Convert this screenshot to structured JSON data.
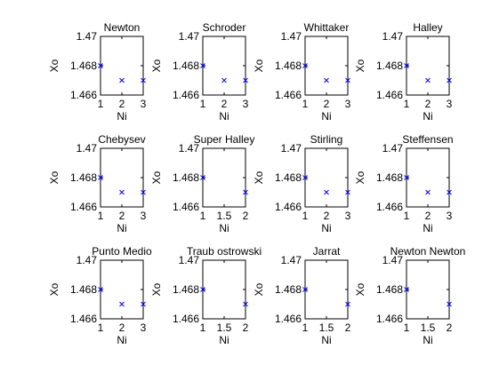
{
  "colors": {
    "background": "#ffffff",
    "axes": "#000000",
    "marker": "#0000ff"
  },
  "chart_data": [
    {
      "type": "scatter",
      "title": "Newton",
      "xlabel": "Ni",
      "ylabel": "Xo",
      "xlim": [
        1,
        3
      ],
      "ylim": [
        1.466,
        1.47
      ],
      "xticks": [
        "1",
        "2",
        "3"
      ],
      "yticks": [
        "1.466",
        "1.468",
        "1.47"
      ],
      "marker": "x",
      "x": [
        1,
        2,
        3
      ],
      "y": [
        1.468,
        1.467,
        1.467
      ]
    },
    {
      "type": "scatter",
      "title": "Schroder",
      "xlabel": "Ni",
      "ylabel": "Xo",
      "xlim": [
        1,
        3
      ],
      "ylim": [
        1.466,
        1.47
      ],
      "xticks": [
        "1",
        "2",
        "3"
      ],
      "yticks": [
        "1.466",
        "1.468",
        "1.47"
      ],
      "marker": "x",
      "x": [
        1,
        2,
        3
      ],
      "y": [
        1.468,
        1.467,
        1.467
      ]
    },
    {
      "type": "scatter",
      "title": "Whittaker",
      "xlabel": "Ni",
      "ylabel": "Xo",
      "xlim": [
        1,
        3
      ],
      "ylim": [
        1.466,
        1.47
      ],
      "xticks": [
        "1",
        "2",
        "3"
      ],
      "yticks": [
        "1.466",
        "1.468",
        "1.47"
      ],
      "marker": "x",
      "x": [
        1,
        2,
        3
      ],
      "y": [
        1.468,
        1.467,
        1.467
      ]
    },
    {
      "type": "scatter",
      "title": "Halley",
      "xlabel": "Ni",
      "ylabel": "Xo",
      "xlim": [
        1,
        3
      ],
      "ylim": [
        1.466,
        1.47
      ],
      "xticks": [
        "1",
        "2",
        "3"
      ],
      "yticks": [
        "1.466",
        "1.468",
        "1.47"
      ],
      "marker": "x",
      "x": [
        1,
        2,
        3
      ],
      "y": [
        1.468,
        1.467,
        1.467
      ]
    },
    {
      "type": "scatter",
      "title": "Chebysev",
      "xlabel": "Ni",
      "ylabel": "Xo",
      "xlim": [
        1,
        3
      ],
      "ylim": [
        1.466,
        1.47
      ],
      "xticks": [
        "1",
        "2",
        "3"
      ],
      "yticks": [
        "1.466",
        "1.468",
        "1.47"
      ],
      "marker": "x",
      "x": [
        1,
        2,
        3
      ],
      "y": [
        1.468,
        1.467,
        1.467
      ]
    },
    {
      "type": "scatter",
      "title": "Super Halley",
      "xlabel": "Ni",
      "ylabel": "Xo",
      "xlim": [
        1,
        2
      ],
      "ylim": [
        1.466,
        1.47
      ],
      "xticks": [
        "1",
        "1.5",
        "2"
      ],
      "yticks": [
        "1.466",
        "1.468",
        "1.47"
      ],
      "marker": "x",
      "x": [
        1,
        2
      ],
      "y": [
        1.468,
        1.467
      ]
    },
    {
      "type": "scatter",
      "title": "Stirling",
      "xlabel": "Ni",
      "ylabel": "Xo",
      "xlim": [
        1,
        3
      ],
      "ylim": [
        1.466,
        1.47
      ],
      "xticks": [
        "1",
        "2",
        "3"
      ],
      "yticks": [
        "1.466",
        "1.468",
        "1.47"
      ],
      "marker": "x",
      "x": [
        1,
        2,
        3
      ],
      "y": [
        1.468,
        1.467,
        1.467
      ]
    },
    {
      "type": "scatter",
      "title": "Steffensen",
      "xlabel": "Ni",
      "ylabel": "Xo",
      "xlim": [
        1,
        3
      ],
      "ylim": [
        1.466,
        1.47
      ],
      "xticks": [
        "1",
        "2",
        "3"
      ],
      "yticks": [
        "1.466",
        "1.468",
        "1.47"
      ],
      "marker": "x",
      "x": [
        1,
        2,
        3
      ],
      "y": [
        1.468,
        1.467,
        1.467
      ]
    },
    {
      "type": "scatter",
      "title": "Punto Medio",
      "xlabel": "Ni",
      "ylabel": "Xo",
      "xlim": [
        1,
        3
      ],
      "ylim": [
        1.466,
        1.47
      ],
      "xticks": [
        "1",
        "2",
        "3"
      ],
      "yticks": [
        "1.466",
        "1.468",
        "1.47"
      ],
      "marker": "x",
      "x": [
        1,
        2,
        3
      ],
      "y": [
        1.468,
        1.467,
        1.467
      ]
    },
    {
      "type": "scatter",
      "title": "Traub ostrowski",
      "xlabel": "Ni",
      "ylabel": "Xo",
      "xlim": [
        1,
        2
      ],
      "ylim": [
        1.466,
        1.47
      ],
      "xticks": [
        "1",
        "1.5",
        "2"
      ],
      "yticks": [
        "1.466",
        "1.468",
        "1.47"
      ],
      "marker": "x",
      "x": [
        1,
        2
      ],
      "y": [
        1.468,
        1.467
      ]
    },
    {
      "type": "scatter",
      "title": "Jarrat",
      "xlabel": "Ni",
      "ylabel": "Xo",
      "xlim": [
        1,
        2
      ],
      "ylim": [
        1.466,
        1.47
      ],
      "xticks": [
        "1",
        "1.5",
        "2"
      ],
      "yticks": [
        "1.466",
        "1.468",
        "1.47"
      ],
      "marker": "x",
      "x": [
        1,
        2
      ],
      "y": [
        1.468,
        1.467
      ]
    },
    {
      "type": "scatter",
      "title": "Newton Newton",
      "xlabel": "Ni",
      "ylabel": "Xo",
      "xlim": [
        1,
        2
      ],
      "ylim": [
        1.466,
        1.47
      ],
      "xticks": [
        "1",
        "1.5",
        "2"
      ],
      "yticks": [
        "1.466",
        "1.468",
        "1.47"
      ],
      "marker": "x",
      "x": [
        1,
        2
      ],
      "y": [
        1.468,
        1.467
      ]
    }
  ]
}
